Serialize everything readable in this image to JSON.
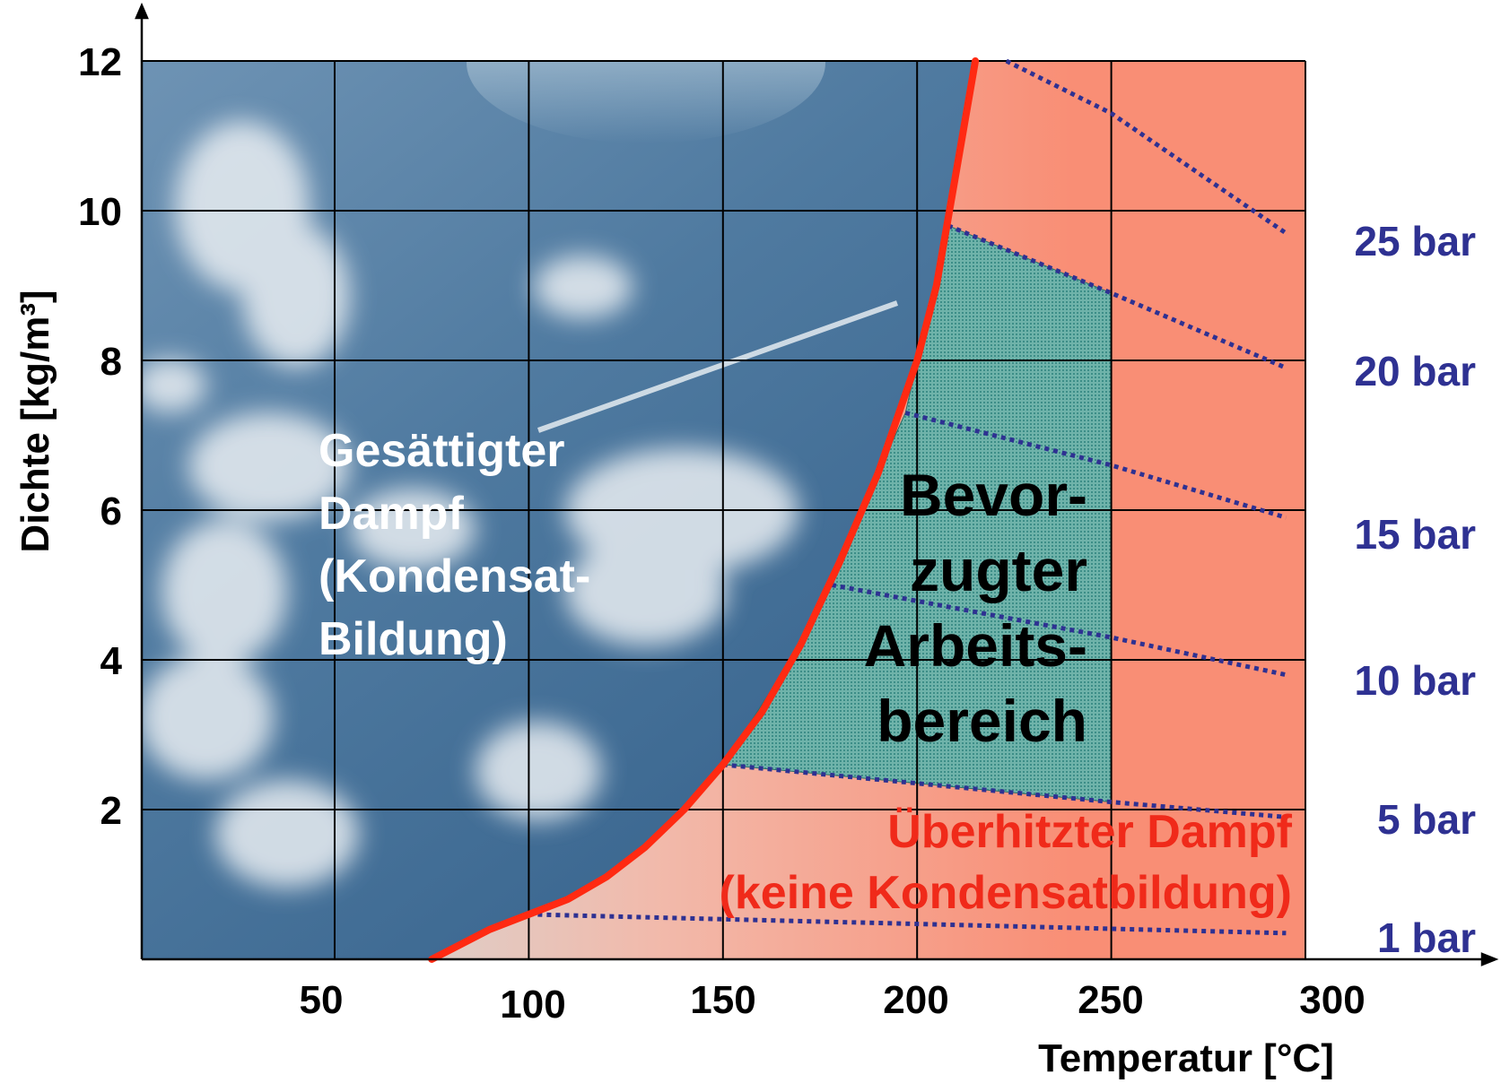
{
  "chart_data": {
    "type": "line",
    "xlabel": "Temperatur [°C]",
    "ylabel": "Dichte [kg/m³]",
    "xlim": [
      0,
      300
    ],
    "ylim": [
      0,
      12
    ],
    "x_ticks": [
      50,
      100,
      150,
      200,
      250,
      300
    ],
    "y_ticks": [
      2,
      4,
      6,
      8,
      10,
      12
    ],
    "grid": true,
    "background": "photo of blue sky with clouds (saturated region)",
    "colors": {
      "saturation_curve": "#ff2a12",
      "isobars": "#2e3192",
      "superheated_fill": "#f98b70",
      "preferred_fill": "#5aa8a0",
      "sky": "#3d6a93"
    },
    "saturation_curve": {
      "x": [
        75,
        90,
        100,
        110,
        120,
        130,
        140,
        150,
        160,
        170,
        180,
        190,
        200,
        205,
        210,
        215
      ],
      "y": [
        0.0,
        0.4,
        0.6,
        0.8,
        1.1,
        1.5,
        2.0,
        2.6,
        3.3,
        4.2,
        5.3,
        6.5,
        8.0,
        9.0,
        10.5,
        12.0
      ]
    },
    "isobars": [
      {
        "name": "1 bar",
        "label": "1 bar",
        "x": [
          100,
          295
        ],
        "y": [
          0.6,
          0.35
        ]
      },
      {
        "name": "5 bar",
        "label": "5 bar",
        "x": [
          150,
          250,
          295
        ],
        "y": [
          2.6,
          2.1,
          1.9
        ]
      },
      {
        "name": "10 bar",
        "label": "10 bar",
        "x": [
          178,
          250,
          295
        ],
        "y": [
          5.0,
          4.3,
          3.8
        ]
      },
      {
        "name": "15 bar",
        "label": "15 bar",
        "x": [
          197,
          250,
          295
        ],
        "y": [
          7.3,
          6.6,
          5.9
        ]
      },
      {
        "name": "20 bar",
        "label": "20 bar",
        "x": [
          208,
          250,
          295
        ],
        "y": [
          9.8,
          8.9,
          7.9
        ]
      },
      {
        "name": "25 bar",
        "label": "25 bar",
        "x": [
          223,
          250,
          295
        ],
        "y": [
          12.0,
          11.3,
          9.7
        ]
      }
    ],
    "preferred_region": {
      "x": [
        150,
        250,
        250,
        208,
        197,
        170
      ],
      "y": [
        2.6,
        2.1,
        8.9,
        9.8,
        7.3,
        4.2
      ]
    },
    "annotations": {
      "saturated": [
        "Gesättigter",
        "Dampf",
        "(Kondensat-",
        "Bildung)"
      ],
      "preferred": [
        "Bevor-",
        "zugter",
        "Arbeits-",
        "bereich"
      ],
      "superheated": [
        "Überhitzter Dampf",
        "(keine Kondensatbildung)"
      ]
    }
  }
}
